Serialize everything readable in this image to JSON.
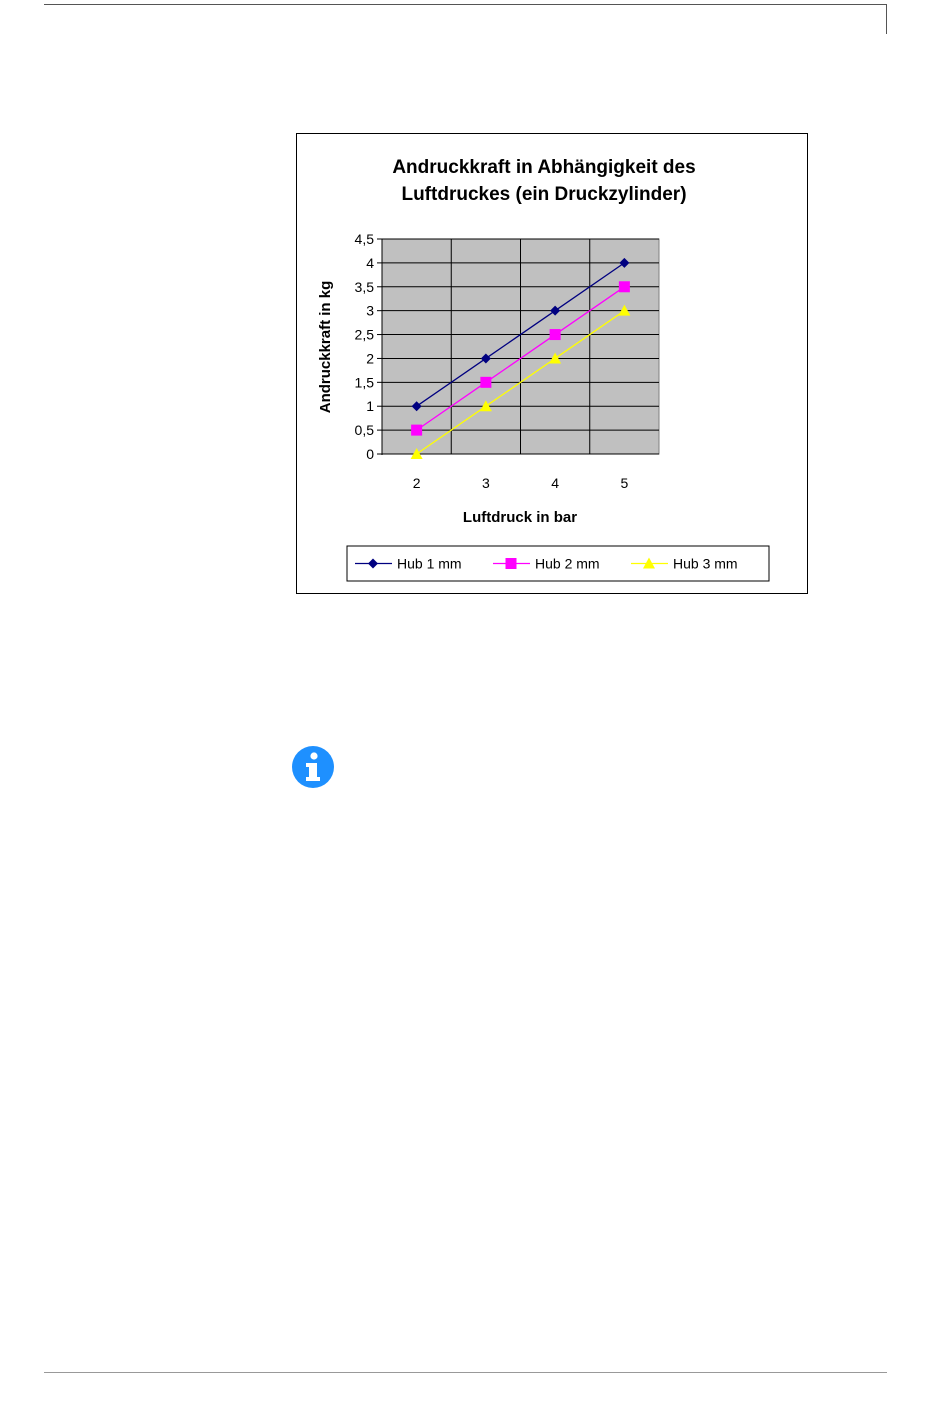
{
  "chart_data": {
    "type": "line",
    "title_line1": "Andruckkraft in Abhängigkeit des",
    "title_line2": "Luftdruckes (ein Druckzylinder)",
    "xlabel": "Luftdruck in bar",
    "ylabel": "Andruckkraft in kg",
    "categories": [
      "2",
      "3",
      "4",
      "5"
    ],
    "ylim": [
      0,
      4.5
    ],
    "yticks": [
      "0",
      "0,5",
      "1",
      "1,5",
      "2",
      "2,5",
      "3",
      "3,5",
      "4",
      "4,5"
    ],
    "grid": true,
    "legend_position": "bottom",
    "series": [
      {
        "name": "Hub 1 mm",
        "values": [
          1,
          2,
          3,
          4
        ],
        "color": "#000080",
        "marker": "diamond"
      },
      {
        "name": "Hub 2 mm",
        "values": [
          0.5,
          1.5,
          2.5,
          3.5
        ],
        "color": "#ff00ff",
        "marker": "square"
      },
      {
        "name": "Hub 3 mm",
        "values": [
          0,
          1,
          2,
          3
        ],
        "color": "#ffff00",
        "marker": "triangle"
      }
    ],
    "plot_background": "#c0c0c0"
  },
  "info": {
    "icon": "info-icon",
    "color": "#1e90ff"
  }
}
